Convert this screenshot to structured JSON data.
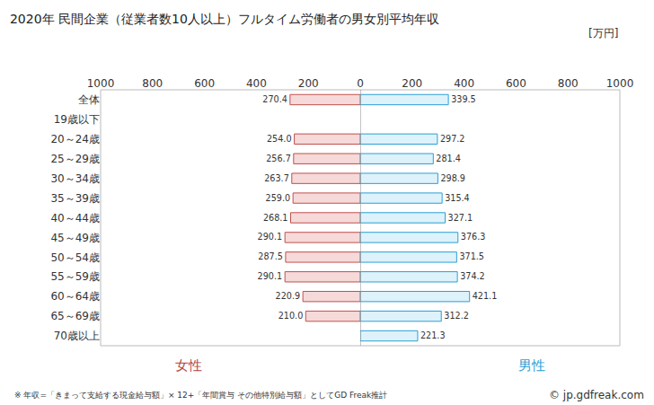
{
  "chart_data": {
    "type": "bar",
    "orientation": "horizontal",
    "title": "2020年 民間企業（従業者数10人以上）フルタイム労働者の男女別平均年収",
    "x_label": "[万円]",
    "categories": [
      "全体",
      "19歳以下",
      "20～24歳",
      "25～29歳",
      "30～34歳",
      "35～39歳",
      "40～44歳",
      "45～49歳",
      "50～54歳",
      "55～59歳",
      "60～64歳",
      "65～69歳",
      "70歳以上"
    ],
    "series": [
      {
        "name": "女性",
        "color": "#f6d9d9",
        "values": [
          270.4,
          null,
          254.0,
          256.7,
          263.7,
          259.0,
          268.1,
          290.1,
          287.5,
          290.1,
          220.9,
          210.0,
          null
        ],
        "value_labels": [
          "270.4",
          null,
          "254.0",
          "256.7",
          "263.7",
          "259.0",
          "268.1",
          "290.1",
          "287.5",
          "290.1",
          "220.9",
          "210.0",
          null
        ]
      },
      {
        "name": "男性",
        "color": "#ddf2fa",
        "values": [
          339.5,
          null,
          297.2,
          281.4,
          298.9,
          315.4,
          327.1,
          376.3,
          371.5,
          374.2,
          421.1,
          312.2,
          221.3
        ],
        "value_labels": [
          "339.5",
          null,
          "297.2",
          "281.4",
          "298.9",
          "315.4",
          "327.1",
          "376.3",
          "371.5",
          "374.2",
          "421.1",
          "312.2",
          "221.3"
        ]
      }
    ],
    "xlim": [
      0,
      1000
    ],
    "xticks": [
      0,
      200,
      400,
      600,
      800,
      1000
    ],
    "data_labels": true,
    "grid": false,
    "annotations": [
      "※ 年収=「きまって支給する現金給与額」× 12+「年間賞与 その他特別給与額」としてGD Freak推計",
      "© jp.gdfreak.com"
    ]
  }
}
